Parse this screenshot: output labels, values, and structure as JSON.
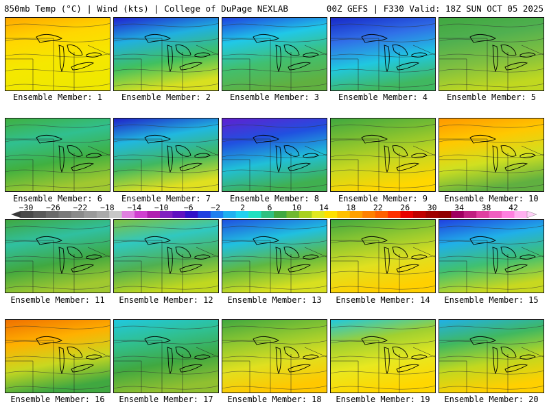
{
  "header": {
    "left": "850mb Temp (°C) | Wind (kts) | College of DuPage NEXLAB",
    "right": "00Z GEFS | F330 Valid: 18Z SUN OCT 05 2025"
  },
  "members": [
    {
      "label": "Ensemble Member: 1",
      "colors": [
        "#ffa800",
        "#ffd700",
        "#f5e800",
        "#f0e800"
      ]
    },
    {
      "label": "Ensemble Member: 2",
      "colors": [
        "#2020d0",
        "#20b0e0",
        "#40c060",
        "#d8e020"
      ]
    },
    {
      "label": "Ensemble Member: 3",
      "colors": [
        "#2040e0",
        "#20c8e8",
        "#40c070",
        "#60b040"
      ]
    },
    {
      "label": "Ensemble Member: 4",
      "colors": [
        "#1828c8",
        "#3070e8",
        "#20c8e0",
        "#40b860"
      ]
    },
    {
      "label": "Ensemble Member: 5",
      "colors": [
        "#40a840",
        "#50b050",
        "#80c040",
        "#c0d820"
      ]
    },
    {
      "label": "Ensemble Member: 6",
      "colors": [
        "#40b040",
        "#30c090",
        "#40b040",
        "#a0c830"
      ]
    },
    {
      "label": "Ensemble Member: 7",
      "colors": [
        "#2020c8",
        "#20b8e0",
        "#40b860",
        "#e0e020"
      ]
    },
    {
      "label": "Ensemble Member: 8",
      "colors": [
        "#6020d0",
        "#2050e0",
        "#20c0d8",
        "#40b050"
      ]
    },
    {
      "label": "Ensemble Member: 9",
      "colors": [
        "#40a840",
        "#80c030",
        "#c8d820",
        "#ffd700"
      ]
    },
    {
      "label": "Ensemble Member: 10",
      "colors": [
        "#ff9800",
        "#ffc800",
        "#d0e020",
        "#60b040"
      ]
    },
    {
      "label": "Ensemble Member: 11",
      "colors": [
        "#40a840",
        "#30c0a0",
        "#40a840",
        "#a0c830"
      ]
    },
    {
      "label": "Ensemble Member: 12",
      "colors": [
        "#80c040",
        "#30c8c0",
        "#50b050",
        "#c0d820"
      ]
    },
    {
      "label": "Ensemble Member: 13",
      "colors": [
        "#2050e0",
        "#20c0e0",
        "#60b840",
        "#d8e020"
      ]
    },
    {
      "label": "Ensemble Member: 14",
      "colors": [
        "#40a840",
        "#90c830",
        "#e0e020",
        "#ffd000"
      ]
    },
    {
      "label": "Ensemble Member: 15",
      "colors": [
        "#2040e0",
        "#20b0e8",
        "#40c070",
        "#c8d820"
      ]
    },
    {
      "label": "Ensemble Member: 16",
      "colors": [
        "#f07000",
        "#ffb000",
        "#c8d820",
        "#40a840"
      ]
    },
    {
      "label": "Ensemble Member: 17",
      "colors": [
        "#20c8e0",
        "#30c090",
        "#40a840",
        "#90c030"
      ]
    },
    {
      "label": "Ensemble Member: 18",
      "colors": [
        "#40a840",
        "#90c830",
        "#e0e020",
        "#ffc800"
      ]
    },
    {
      "label": "Ensemble Member: 19",
      "colors": [
        "#20c8e0",
        "#a0d030",
        "#e8e820",
        "#ffd700"
      ]
    },
    {
      "label": "Ensemble Member: 20",
      "colors": [
        "#20b0e8",
        "#40b860",
        "#c0d820",
        "#ffd000"
      ]
    }
  ],
  "colorbar": {
    "labels": [
      "−30",
      "−26",
      "−22",
      "−18",
      "−14",
      "−10",
      "−6",
      "−2",
      "2",
      "6",
      "10",
      "14",
      "18",
      "22",
      "26",
      "30",
      "34",
      "38",
      "42"
    ],
    "colors": [
      "#4a4a4a",
      "#5a5a5a",
      "#6a6a6a",
      "#7a7a7a",
      "#8a8a8a",
      "#9a9a9a",
      "#aaaaaa",
      "#c8c8c8",
      "#e080e0",
      "#d040d0",
      "#b020b0",
      "#8020c0",
      "#6010c0",
      "#3010c8",
      "#2040e0",
      "#2080f0",
      "#20b0f0",
      "#20d0f0",
      "#20e0c0",
      "#30c080",
      "#40a840",
      "#70b830",
      "#a8d020",
      "#e0e820",
      "#ffe000",
      "#ffc000",
      "#ffa000",
      "#ff8000",
      "#ff6000",
      "#ff3000",
      "#e80000",
      "#c00000",
      "#a00000",
      "#900000",
      "#a00060",
      "#c02080",
      "#e040a0",
      "#f060c0",
      "#ff80e0",
      "#ffb0f0"
    ]
  }
}
